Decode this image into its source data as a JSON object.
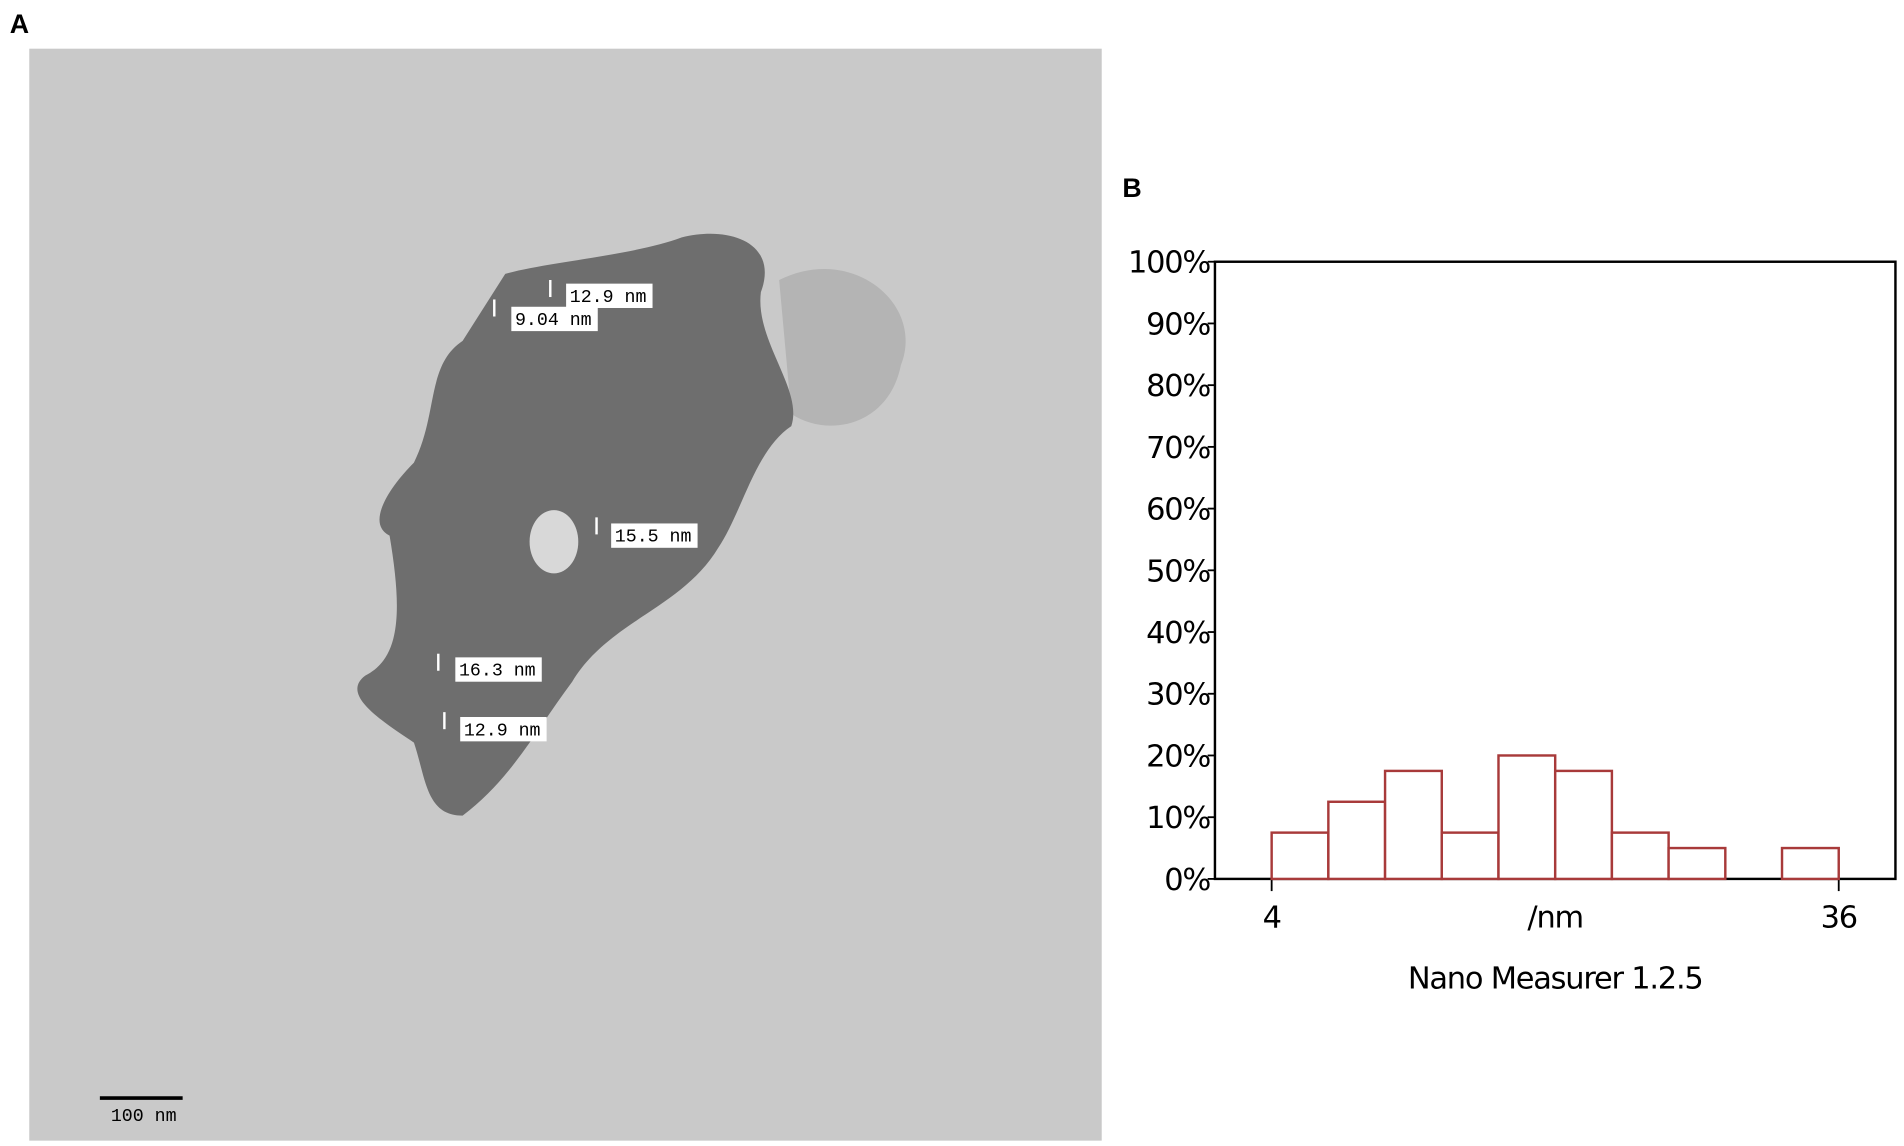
{
  "panel_labels": [
    "A",
    "B"
  ],
  "image": {
    "scale_bar": "100 nm",
    "measurements": [
      "12.9 nm",
      "9.04 nm",
      "15.5 nm",
      "16.3 nm",
      "12.9 nm"
    ]
  },
  "chart_data": {
    "type": "histogram",
    "x_label": "/nm",
    "caption": "Nano Measurer 1.2.5",
    "bins": [
      4,
      7.2,
      10.4,
      13.6,
      16.8,
      20,
      23.2,
      26.4,
      29.6,
      32.8,
      36
    ],
    "values": [
      7.5,
      12.5,
      17.5,
      7.5,
      20,
      17.5,
      7.5,
      5,
      0,
      5
    ],
    "color": "#a83a3a",
    "xlim": [
      0.8,
      39.2
    ],
    "xticks": [
      4,
      36
    ],
    "ylim": [
      0,
      100
    ],
    "yticks": [
      {
        "value": 0,
        "label": "0%"
      },
      {
        "value": 10,
        "label": "10%"
      },
      {
        "value": 20,
        "label": "20%"
      },
      {
        "value": 30,
        "label": "30%"
      },
      {
        "value": 40,
        "label": "40%"
      },
      {
        "value": 50,
        "label": "50%"
      },
      {
        "value": 60,
        "label": "60%"
      },
      {
        "value": 70,
        "label": "70%"
      },
      {
        "value": 80,
        "label": "80%"
      },
      {
        "value": 90,
        "label": "90%"
      },
      {
        "value": 100,
        "label": "100%"
      }
    ]
  }
}
